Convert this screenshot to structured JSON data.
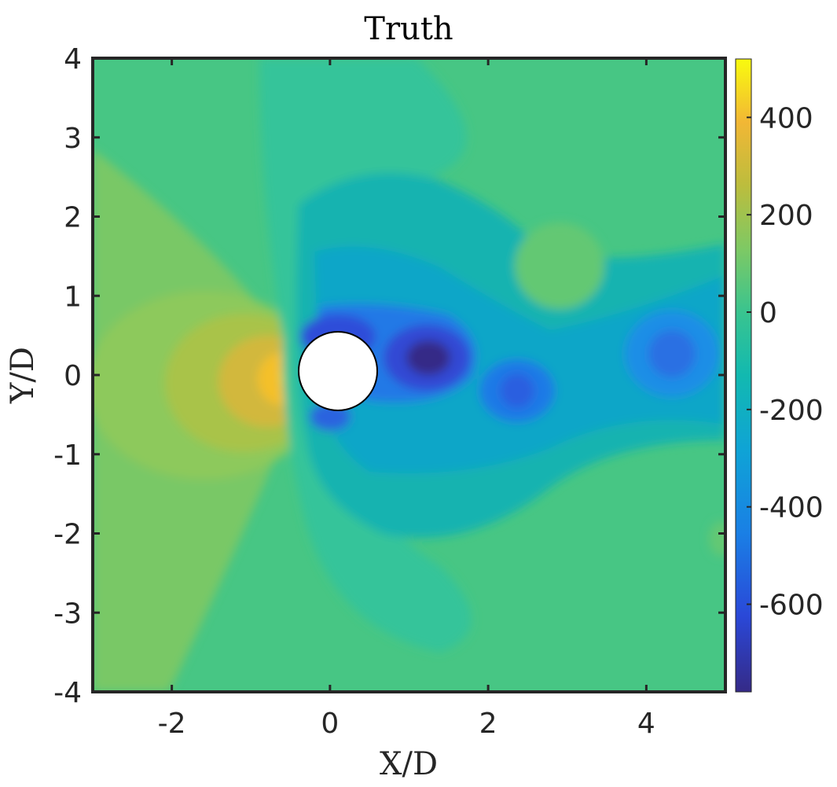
{
  "chart_data": {
    "type": "heatmap",
    "title": "Truth",
    "xlabel": "X/D",
    "ylabel": "Y/D",
    "xlim": [
      -3,
      5
    ],
    "ylim": [
      -4,
      4
    ],
    "xticks": [
      -2,
      0,
      2,
      4
    ],
    "yticks": [
      -4,
      -3,
      -2,
      -1,
      0,
      1,
      2,
      3,
      4
    ],
    "colorbar": {
      "clim": [
        -780,
        520
      ],
      "ticks": [
        -600,
        -400,
        -200,
        0,
        200,
        400
      ],
      "colormap": "parula"
    },
    "obstacle": {
      "shape": "circle",
      "center": [
        0.1,
        0.05
      ],
      "diameter": 1.0
    },
    "field_features": [
      {
        "kind": "stagnation-high",
        "center": [
          -0.55,
          0.0
        ],
        "value": 500
      },
      {
        "kind": "separation-low",
        "center": [
          0.1,
          0.45
        ],
        "value": -500
      },
      {
        "kind": "vortex-low",
        "center": [
          1.25,
          0.2
        ],
        "value": -780
      },
      {
        "kind": "vortex-low",
        "center": [
          2.4,
          -0.2
        ],
        "value": -460
      },
      {
        "kind": "vortex-low",
        "center": [
          4.35,
          0.25
        ],
        "value": -380
      },
      {
        "kind": "local-high",
        "center": [
          2.9,
          1.45
        ],
        "value": 60
      }
    ]
  }
}
